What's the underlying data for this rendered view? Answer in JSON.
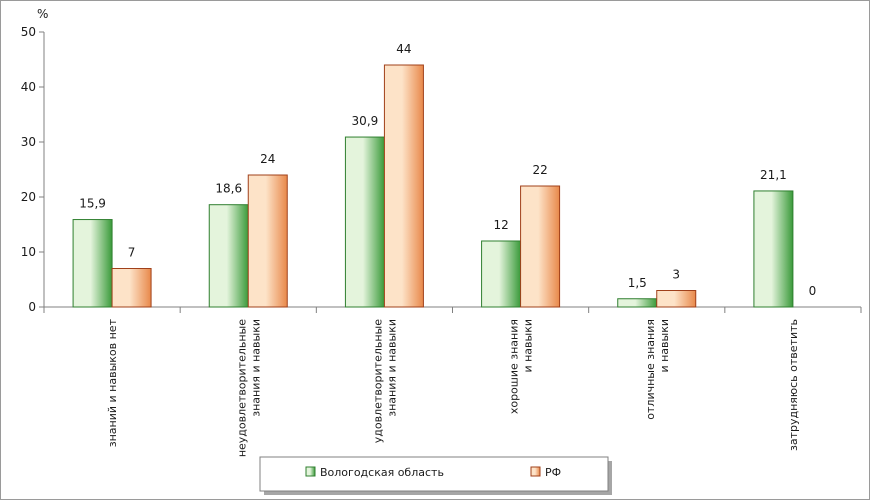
{
  "chart_data": {
    "type": "bar",
    "unit": "%",
    "categories": [
      [
        "знаний и навыков нет"
      ],
      [
        "неудовлетворительные",
        "знания и навыки"
      ],
      [
        "удовлетворительные",
        "знания и навыки"
      ],
      [
        "хорошие знания",
        "и навыки"
      ],
      [
        "отличные знания",
        "и навыки"
      ],
      [
        "затрудняюсь ответить"
      ]
    ],
    "series": [
      {
        "name": "Вологодская область",
        "values": [
          15.9,
          18.6,
          30.9,
          12,
          1.5,
          21.1
        ],
        "labels": [
          "15,9",
          "18,6",
          "30,9",
          "12",
          "1,5",
          "21,1"
        ],
        "color_light": "#e4f4dc",
        "color_dark": "#3a9a3a",
        "stroke": "#2f7f2f"
      },
      {
        "name": "РФ",
        "values": [
          7,
          24,
          44,
          22,
          3,
          0
        ],
        "labels": [
          "7",
          "24",
          "44",
          "22",
          "3",
          "0"
        ],
        "color_light": "#fde3c8",
        "color_dark": "#e8884a",
        "stroke": "#a0401a"
      }
    ],
    "ylim": [
      0,
      50
    ],
    "yticks": [
      0,
      10,
      20,
      30,
      40,
      50
    ],
    "grid": false,
    "legend": "bottom"
  }
}
